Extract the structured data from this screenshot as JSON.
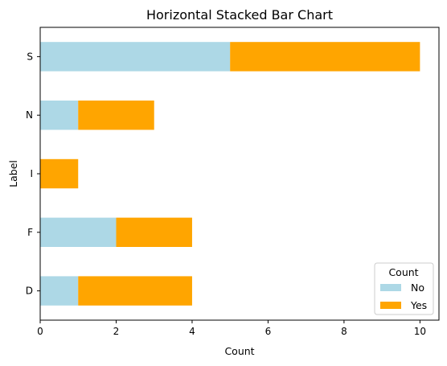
{
  "chart_data": {
    "type": "bar",
    "orientation": "horizontal",
    "stacked": true,
    "title": "Horizontal Stacked Bar Chart",
    "xlabel": "Count",
    "ylabel": "Label",
    "categories": [
      "D",
      "F",
      "I",
      "N",
      "S"
    ],
    "series": [
      {
        "name": "No",
        "values": [
          1,
          2,
          0,
          1,
          5
        ],
        "color": "#add8e6"
      },
      {
        "name": "Yes",
        "values": [
          3,
          2,
          1,
          2,
          5
        ],
        "color": "#ffa500"
      }
    ],
    "xlim": [
      0,
      10.5
    ],
    "xticks": [
      0,
      2,
      4,
      6,
      8,
      10
    ],
    "grid": false,
    "legend": {
      "title": "Count",
      "placement": "lower-right"
    }
  }
}
